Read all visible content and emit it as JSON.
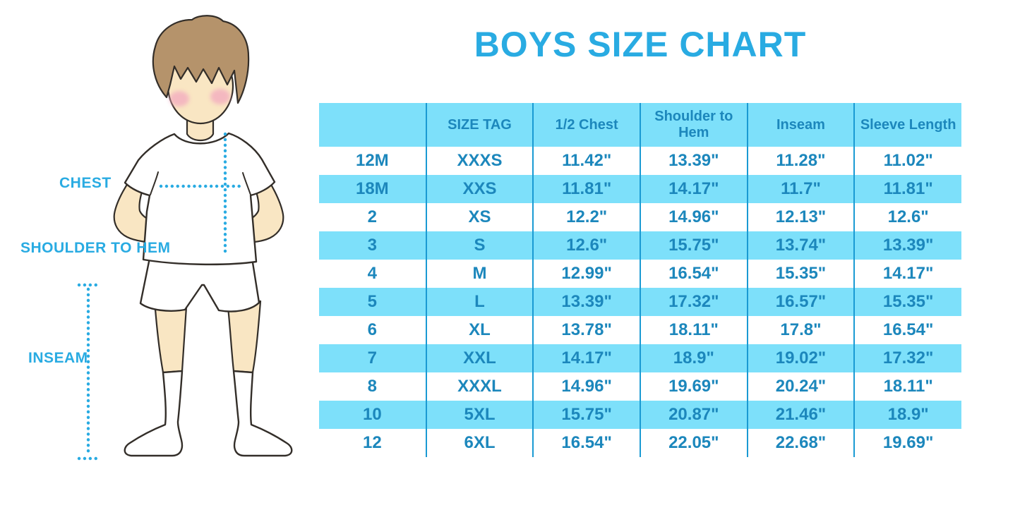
{
  "page": {
    "title": "BOYS SIZE CHART"
  },
  "colors": {
    "accent": "#29ABE2",
    "row_blue": "#7DE0FA",
    "line_blue": "#1A9AD3",
    "table_text": "#1C87BC",
    "skin": "#F9E6C3",
    "hair": "#B5936B",
    "cheek": "#F3A9BF",
    "outline": "#332E29"
  },
  "figure": {
    "chest_label": "CHEST",
    "shoulder_to_hem_label": "SHOULDER TO HEM",
    "inseam_label": "INSEAM"
  },
  "table": {
    "headers": [
      "",
      "SIZE TAG",
      "1/2 Chest",
      "Shoulder to Hem",
      "Inseam",
      "Sleeve Length"
    ],
    "rows": [
      [
        "12M",
        "XXXS",
        "11.42\"",
        "13.39\"",
        "11.28\"",
        "11.02\""
      ],
      [
        "18M",
        "XXS",
        "11.81\"",
        "14.17\"",
        "11.7\"",
        "11.81\""
      ],
      [
        "2",
        "XS",
        "12.2\"",
        "14.96\"",
        "12.13\"",
        "12.6\""
      ],
      [
        "3",
        "S",
        "12.6\"",
        "15.75\"",
        "13.74\"",
        "13.39\""
      ],
      [
        "4",
        "M",
        "12.99\"",
        "16.54\"",
        "15.35\"",
        "14.17\""
      ],
      [
        "5",
        "L",
        "13.39\"",
        "17.32\"",
        "16.57\"",
        "15.35\""
      ],
      [
        "6",
        "XL",
        "13.78\"",
        "18.11\"",
        "17.8\"",
        "16.54\""
      ],
      [
        "7",
        "XXL",
        "14.17\"",
        "18.9\"",
        "19.02\"",
        "17.32\""
      ],
      [
        "8",
        "XXXL",
        "14.96\"",
        "19.69\"",
        "20.24\"",
        "18.11\""
      ],
      [
        "10",
        "5XL",
        "15.75\"",
        "20.87\"",
        "21.46\"",
        "18.9\""
      ],
      [
        "12",
        "6XL",
        "16.54\"",
        "22.05\"",
        "22.68\"",
        "19.69\""
      ]
    ]
  }
}
